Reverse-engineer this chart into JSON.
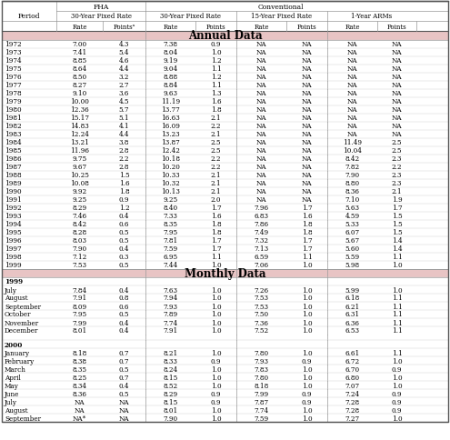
{
  "annual_data": [
    [
      "1972",
      "7.00",
      "4.3",
      "7.38",
      "0.9",
      "NA",
      "NA",
      "NA",
      "NA"
    ],
    [
      "1973",
      "7.41",
      "5.4",
      "8.04",
      "1.0",
      "NA",
      "NA",
      "NA",
      "NA"
    ],
    [
      "1974",
      "8.85",
      "4.6",
      "9.19",
      "1.2",
      "NA",
      "NA",
      "NA",
      "NA"
    ],
    [
      "1975",
      "8.64",
      "4.4",
      "9.04",
      "1.1",
      "NA",
      "NA",
      "NA",
      "NA"
    ],
    [
      "1976",
      "8.50",
      "3.2",
      "8.88",
      "1.2",
      "NA",
      "NA",
      "NA",
      "NA"
    ],
    [
      "1977",
      "8.27",
      "2.7",
      "8.84",
      "1.1",
      "NA",
      "NA",
      "NA",
      "NA"
    ],
    [
      "1978",
      "9.10",
      "3.6",
      "9.63",
      "1.3",
      "NA",
      "NA",
      "NA",
      "NA"
    ],
    [
      "1979",
      "10.00",
      "4.5",
      "11.19",
      "1.6",
      "NA",
      "NA",
      "NA",
      "NA"
    ],
    [
      "1980",
      "12.36",
      "5.7",
      "13.77",
      "1.8",
      "NA",
      "NA",
      "NA",
      "NA"
    ],
    [
      "1981",
      "15.17",
      "5.1",
      "16.63",
      "2.1",
      "NA",
      "NA",
      "NA",
      "NA"
    ],
    [
      "1982",
      "14.83",
      "4.1",
      "16.09",
      "2.2",
      "NA",
      "NA",
      "NA",
      "NA"
    ],
    [
      "1983",
      "12.24",
      "4.4",
      "13.23",
      "2.1",
      "NA",
      "NA",
      "NA",
      "NA"
    ],
    [
      "1984",
      "13.21",
      "3.8",
      "13.87",
      "2.5",
      "NA",
      "NA",
      "11.49",
      "2.5"
    ],
    [
      "1985",
      "11.96",
      "2.8",
      "12.42",
      "2.5",
      "NA",
      "NA",
      "10.04",
      "2.5"
    ],
    [
      "1986",
      "9.75",
      "2.2",
      "10.18",
      "2.2",
      "NA",
      "NA",
      "8.42",
      "2.3"
    ],
    [
      "1987",
      "9.67",
      "2.8",
      "10.20",
      "2.2",
      "NA",
      "NA",
      "7.82",
      "2.2"
    ],
    [
      "1988",
      "10.25",
      "1.5",
      "10.33",
      "2.1",
      "NA",
      "NA",
      "7.90",
      "2.3"
    ],
    [
      "1989",
      "10.08",
      "1.6",
      "10.32",
      "2.1",
      "NA",
      "NA",
      "8.80",
      "2.3"
    ],
    [
      "1990",
      "9.92",
      "1.8",
      "10.13",
      "2.1",
      "NA",
      "NA",
      "8.36",
      "2.1"
    ],
    [
      "1991",
      "9.25",
      "0.9",
      "9.25",
      "2.0",
      "NA",
      "NA",
      "7.10",
      "1.9"
    ],
    [
      "1992",
      "8.29",
      "1.2",
      "8.40",
      "1.7",
      "7.96",
      "1.7",
      "5.63",
      "1.7"
    ],
    [
      "1993",
      "7.46",
      "0.4",
      "7.33",
      "1.6",
      "6.83",
      "1.6",
      "4.59",
      "1.5"
    ],
    [
      "1994",
      "8.42",
      "0.6",
      "8.35",
      "1.8",
      "7.86",
      "1.8",
      "5.33",
      "1.5"
    ],
    [
      "1995",
      "8.28",
      "0.5",
      "7.95",
      "1.8",
      "7.49",
      "1.8",
      "6.07",
      "1.5"
    ],
    [
      "1996",
      "8.03",
      "0.5",
      "7.81",
      "1.7",
      "7.32",
      "1.7",
      "5.67",
      "1.4"
    ],
    [
      "1997",
      "7.90",
      "0.4",
      "7.59",
      "1.7",
      "7.13",
      "1.7",
      "5.60",
      "1.4"
    ],
    [
      "1998",
      "7.12",
      "0.3",
      "6.95",
      "1.1",
      "6.59",
      "1.1",
      "5.59",
      "1.1"
    ],
    [
      "1999",
      "7.53",
      "0.5",
      "7.44",
      "1.0",
      "7.06",
      "1.0",
      "5.98",
      "1.0"
    ]
  ],
  "monthly_1999": [
    [
      "July",
      "7.84",
      "0.4",
      "7.63",
      "1.0",
      "7.26",
      "1.0",
      "5.99",
      "1.0"
    ],
    [
      "August",
      "7.91",
      "0.8",
      "7.94",
      "1.0",
      "7.53",
      "1.0",
      "6.18",
      "1.1"
    ],
    [
      "September",
      "8.09",
      "0.6",
      "7.93",
      "1.0",
      "7.53",
      "1.0",
      "6.21",
      "1.1"
    ],
    [
      "October",
      "7.95",
      "0.5",
      "7.89",
      "1.0",
      "7.50",
      "1.0",
      "6.31",
      "1.1"
    ],
    [
      "November",
      "7.99",
      "0.4",
      "7.74",
      "1.0",
      "7.36",
      "1.0",
      "6.36",
      "1.1"
    ],
    [
      "December",
      "8.01",
      "0.4",
      "7.91",
      "1.0",
      "7.52",
      "1.0",
      "6.53",
      "1.1"
    ]
  ],
  "monthly_2000": [
    [
      "January",
      "8.18",
      "0.7",
      "8.21",
      "1.0",
      "7.80",
      "1.0",
      "6.61",
      "1.1"
    ],
    [
      "February",
      "8.38",
      "0.7",
      "8.33",
      "0.9",
      "7.93",
      "0.9",
      "6.72",
      "1.0"
    ],
    [
      "March",
      "8.35",
      "0.5",
      "8.24",
      "1.0",
      "7.83",
      "1.0",
      "6.70",
      "0.9"
    ],
    [
      "April",
      "8.25",
      "0.7",
      "8.15",
      "1.0",
      "7.80",
      "1.0",
      "6.80",
      "1.0"
    ],
    [
      "May",
      "8.34",
      "0.4",
      "8.52",
      "1.0",
      "8.18",
      "1.0",
      "7.07",
      "1.0"
    ],
    [
      "June",
      "8.36",
      "0.5",
      "8.29",
      "0.9",
      "7.99",
      "0.9",
      "7.24",
      "0.9"
    ],
    [
      "July",
      "NA",
      "NA",
      "8.15",
      "0.9",
      "7.87",
      "0.9",
      "7.28",
      "0.9"
    ],
    [
      "August",
      "NA",
      "NA",
      "8.01",
      "1.0",
      "7.74",
      "1.0",
      "7.28",
      "0.9"
    ],
    [
      "September",
      "NA*",
      "NA",
      "7.90",
      "1.0",
      "7.59",
      "1.0",
      "7.27",
      "1.0"
    ]
  ],
  "section_bg": "#e8c4c4",
  "line_color": "#999999",
  "heavy_line": "#555555",
  "font_size": 5.2,
  "header_font_size": 5.5
}
